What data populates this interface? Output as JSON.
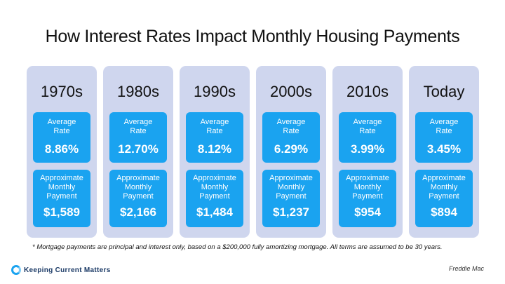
{
  "title": "How Interest Rates Impact Monthly Housing Payments",
  "rate_label_line1": "Average",
  "rate_label_line2": "Rate",
  "pay_label_line1": "Approximate",
  "pay_label_line2": "Monthly",
  "pay_label_line3": "Payment",
  "columns": [
    {
      "decade": "1970s",
      "rate": "8.86%",
      "payment": "$1,589"
    },
    {
      "decade": "1980s",
      "rate": "12.70%",
      "payment": "$2,166"
    },
    {
      "decade": "1990s",
      "rate": "8.12%",
      "payment": "$1,484"
    },
    {
      "decade": "2000s",
      "rate": "6.29%",
      "payment": "$1,237"
    },
    {
      "decade": "2010s",
      "rate": "3.99%",
      "payment": "$954"
    },
    {
      "decade": "Today",
      "rate": "3.45%",
      "payment": "$894"
    }
  ],
  "footnote": "* Mortgage payments are principal and interest only, based on a $200,000 fully amortizing mortgage. All terms are assumed to be 30 years.",
  "brand": "Keeping Current Matters",
  "source": "Freddie Mac",
  "colors": {
    "column_bg": "#cfd6ee",
    "accent": "#1aa3f0"
  }
}
